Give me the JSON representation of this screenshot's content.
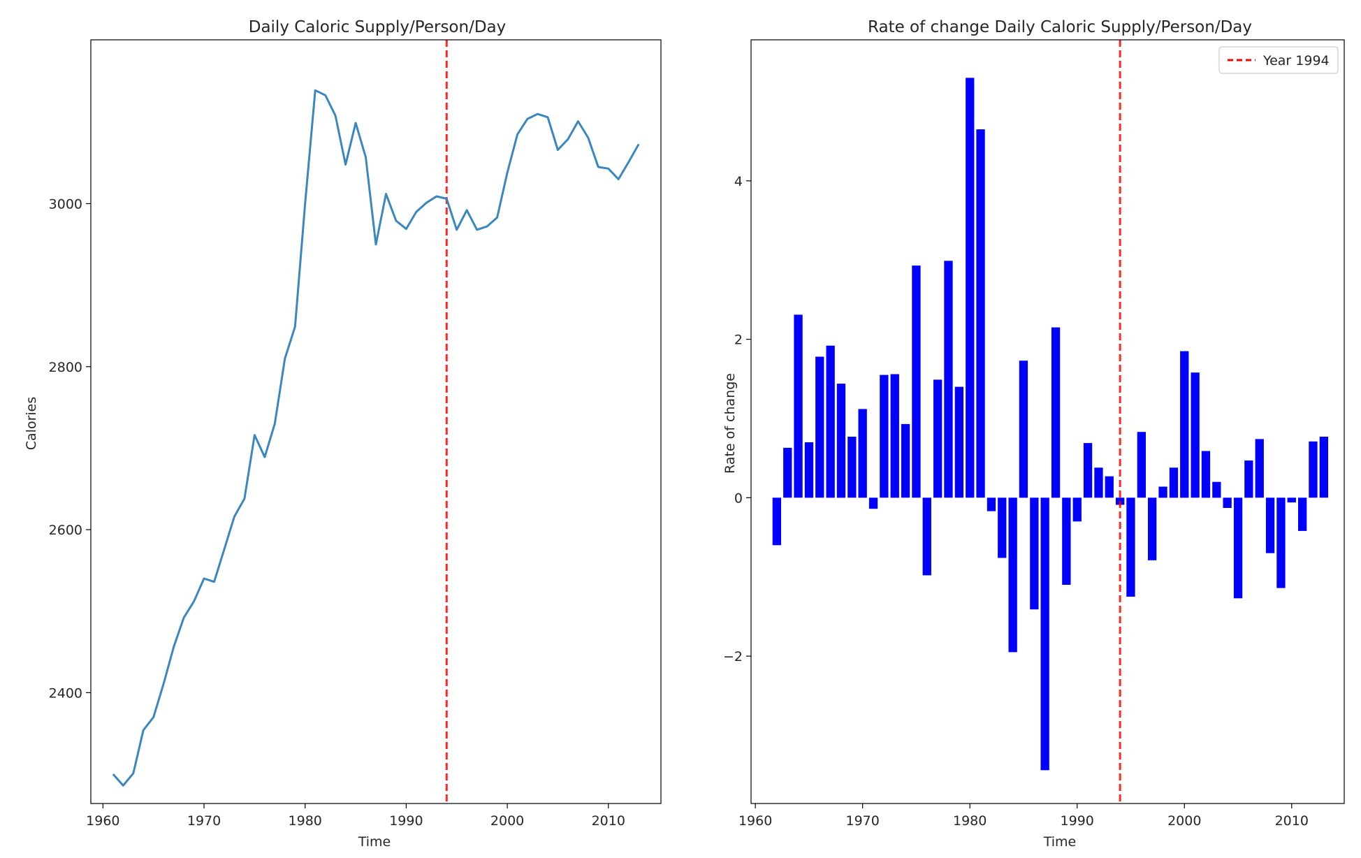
{
  "chart_data": [
    {
      "type": "line",
      "title": "Daily Caloric Supply/Person/Day",
      "xlabel": "Time",
      "ylabel": "Calories",
      "xlim": [
        1958.8,
        2015.2
      ],
      "ylim": [
        2264,
        3201
      ],
      "xticks": [
        1960,
        1970,
        1980,
        1990,
        2000,
        2010
      ],
      "yticks": [
        2400,
        2600,
        2800,
        3000
      ],
      "grid": false,
      "line_color": "#3a87c0",
      "series": [
        {
          "name": "",
          "x": [
            1961,
            1962,
            1963,
            1964,
            1965,
            1966,
            1967,
            1968,
            1969,
            1970,
            1971,
            1972,
            1973,
            1974,
            1975,
            1976,
            1977,
            1978,
            1979,
            1980,
            1981,
            1982,
            1983,
            1984,
            1985,
            1986,
            1987,
            1988,
            1989,
            1990,
            1991,
            1992,
            1993,
            1994,
            1995,
            1996,
            1997,
            1998,
            1999,
            2000,
            2001,
            2002,
            2003,
            2004,
            2005,
            2006,
            2007,
            2008,
            2009,
            2010,
            2011,
            2012,
            2013
          ],
          "y": [
            2300,
            2286,
            2301,
            2354,
            2370,
            2411,
            2456,
            2492,
            2512,
            2540,
            2536,
            2576,
            2616,
            2638,
            2716,
            2689,
            2730,
            2810,
            2849,
            3000,
            3139,
            3133,
            3108,
            3048,
            3099,
            3057,
            2950,
            3012,
            2979,
            2969,
            2990,
            3001,
            3009,
            3006,
            2968,
            2992,
            2968,
            2972,
            2983,
            3038,
            3085,
            3104,
            3110,
            3106,
            3066,
            3079,
            3101,
            3081,
            3045,
            3043,
            3030,
            3051,
            3073
          ]
        }
      ],
      "reference_line": {
        "x": 1994,
        "color": "#ff0000",
        "style": "dashed"
      }
    },
    {
      "type": "bar",
      "title": "Rate of change Daily Caloric Supply/Person/Day",
      "xlabel": "Time",
      "ylabel": "Rate of change",
      "xlim": [
        1959.6,
        2014.9
      ],
      "ylim": [
        -3.86,
        5.78
      ],
      "xticks": [
        1960,
        1970,
        1980,
        1990,
        2000,
        2010
      ],
      "yticks": [
        -2,
        0,
        2,
        4
      ],
      "grid": false,
      "bar_color": "#0000ff",
      "legend": {
        "position": "upper right",
        "entries": [
          {
            "label": "Year 1994",
            "color": "#ff0000",
            "style": "dashed"
          }
        ]
      },
      "x": [
        1962,
        1963,
        1964,
        1965,
        1966,
        1967,
        1968,
        1969,
        1970,
        1971,
        1972,
        1973,
        1974,
        1975,
        1976,
        1977,
        1978,
        1979,
        1980,
        1981,
        1982,
        1983,
        1984,
        1985,
        1986,
        1987,
        1988,
        1989,
        1990,
        1991,
        1992,
        1993,
        1994,
        1995,
        1996,
        1997,
        1998,
        1999,
        2000,
        2001,
        2002,
        2003,
        2004,
        2005,
        2006,
        2007,
        2008,
        2009,
        2010,
        2011,
        2012,
        2013
      ],
      "values": [
        -0.6,
        0.63,
        2.31,
        0.7,
        1.78,
        1.92,
        1.44,
        0.77,
        1.12,
        -0.14,
        1.55,
        1.56,
        0.93,
        2.93,
        -0.98,
        1.49,
        2.99,
        1.4,
        5.3,
        4.65,
        -0.17,
        -0.76,
        -1.95,
        1.73,
        -1.41,
        -3.44,
        2.15,
        -1.1,
        -0.3,
        0.69,
        0.38,
        0.27,
        -0.09,
        -1.25,
        0.83,
        -0.79,
        0.14,
        0.38,
        1.85,
        1.58,
        0.59,
        0.2,
        -0.13,
        -1.27,
        0.47,
        0.74,
        -0.7,
        -1.14,
        -0.06,
        -0.42,
        0.71,
        0.77
      ],
      "reference_line": {
        "x": 1994,
        "color": "#ff0000",
        "style": "dashed",
        "name": "Year 1994"
      }
    }
  ]
}
